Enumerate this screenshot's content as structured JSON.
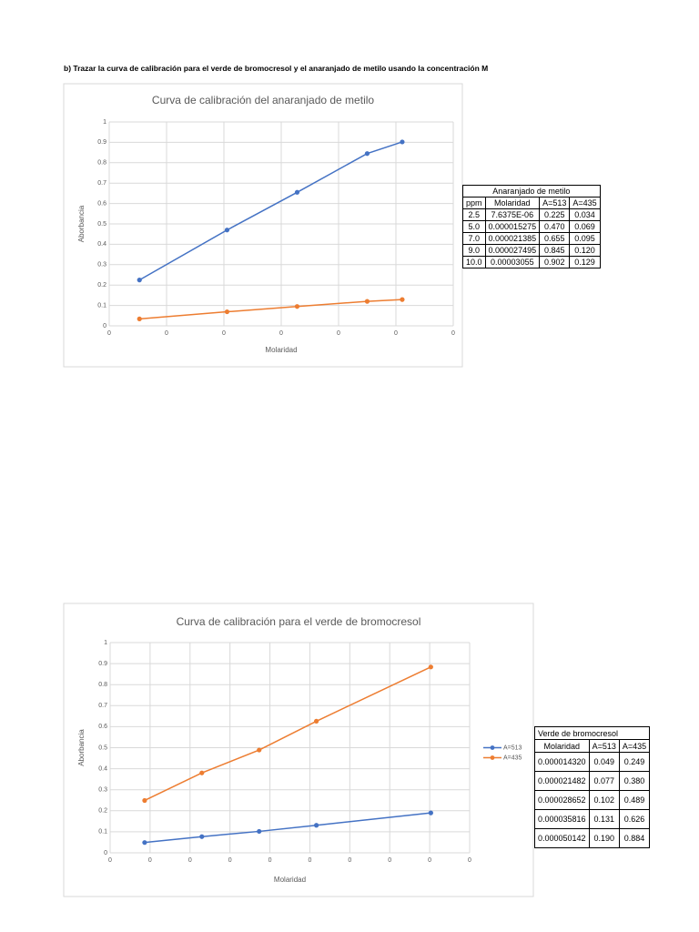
{
  "heading": "b) Trazar la curva de calibración para el verde de bromocresol y el anaranjado de metilo usando la concentración M",
  "chart_data": [
    {
      "type": "line",
      "title": "Curva de calibración del anaranjado de metilo",
      "x_label": "Molaridad",
      "y_label": "Aborbancia",
      "x": [
        7.6375e-06,
        1.5275e-05,
        2.1385e-05,
        2.7495e-05,
        3.055e-05
      ],
      "series": [
        {
          "color": "#4472c4",
          "values": [
            0.225,
            0.47,
            0.655,
            0.845,
            0.902
          ]
        },
        {
          "color": "#ed7d31",
          "values": [
            0.034,
            0.069,
            0.095,
            0.12,
            0.129
          ]
        }
      ],
      "xlim": [
        5e-06,
        3.5e-05
      ],
      "xticks": [
        {
          "value": 5e-06,
          "label": "0"
        },
        {
          "value": 1e-05,
          "label": "0"
        },
        {
          "value": 1.5e-05,
          "label": "0"
        },
        {
          "value": 2e-05,
          "label": "0"
        },
        {
          "value": 2.5e-05,
          "label": "0"
        },
        {
          "value": 3e-05,
          "label": "0"
        },
        {
          "value": 3.5e-05,
          "label": "0"
        }
      ],
      "ylim": [
        0,
        1
      ],
      "yticks": [
        0,
        0.1,
        0.2,
        0.3,
        0.4,
        0.5,
        0.6,
        0.7,
        0.8,
        0.9,
        1
      ],
      "grid": true
    },
    {
      "type": "line",
      "title": "Curva de calibración para el verde de bromocresol",
      "x_label": "Molaridad",
      "y_label": "Aborbancia",
      "x": [
        1.432e-05,
        2.1482e-05,
        2.8652e-05,
        3.5816e-05,
        5.0142e-05
      ],
      "series": [
        {
          "name": "A=513",
          "color": "#4472c4",
          "values": [
            0.049,
            0.077,
            0.102,
            0.131,
            0.19
          ]
        },
        {
          "name": "A=435",
          "color": "#ed7d31",
          "values": [
            0.249,
            0.38,
            0.489,
            0.626,
            0.884
          ]
        }
      ],
      "xlim": [
        1e-05,
        5.5e-05
      ],
      "xticks": [
        {
          "value": 1e-05,
          "label": "0"
        },
        {
          "value": 1.5e-05,
          "label": "0"
        },
        {
          "value": 2e-05,
          "label": "0"
        },
        {
          "value": 2.5e-05,
          "label": "0"
        },
        {
          "value": 3e-05,
          "label": "0"
        },
        {
          "value": 3.5e-05,
          "label": "0"
        },
        {
          "value": 4e-05,
          "label": "0"
        },
        {
          "value": 4.5e-05,
          "label": "0"
        },
        {
          "value": 5e-05,
          "label": "0"
        },
        {
          "value": 5.5e-05,
          "label": "0"
        }
      ],
      "ylim": [
        0,
        1
      ],
      "yticks": [
        0,
        0.1,
        0.2,
        0.3,
        0.4,
        0.5,
        0.6,
        0.7,
        0.8,
        0.9,
        1
      ],
      "grid": true,
      "legend": "right"
    }
  ],
  "tables": [
    {
      "title": "Anaranjado de metilo",
      "columns": [
        "ppm",
        "Molaridad",
        "A=513",
        "A=435"
      ],
      "rows": [
        [
          "2.5",
          "7.6375E-06",
          "0.225",
          "0.034"
        ],
        [
          "5.0",
          "0.000015275",
          "0.470",
          "0.069"
        ],
        [
          "7.0",
          "0.000021385",
          "0.655",
          "0.095"
        ],
        [
          "9.0",
          "0.000027495",
          "0.845",
          "0.120"
        ],
        [
          "10.0",
          "0.00003055",
          "0.902",
          "0.129"
        ]
      ]
    },
    {
      "title": "Verde de bromocresol",
      "columns": [
        "Molaridad",
        "A=513",
        "A=435"
      ],
      "rows": [
        [
          "0.000014320",
          "0.049",
          "0.249"
        ],
        [
          "0.000021482",
          "0.077",
          "0.380"
        ],
        [
          "0.000028652",
          "0.102",
          "0.489"
        ],
        [
          "0.000035816",
          "0.131",
          "0.626"
        ],
        [
          "0.000050142",
          "0.190",
          "0.884"
        ]
      ]
    }
  ]
}
